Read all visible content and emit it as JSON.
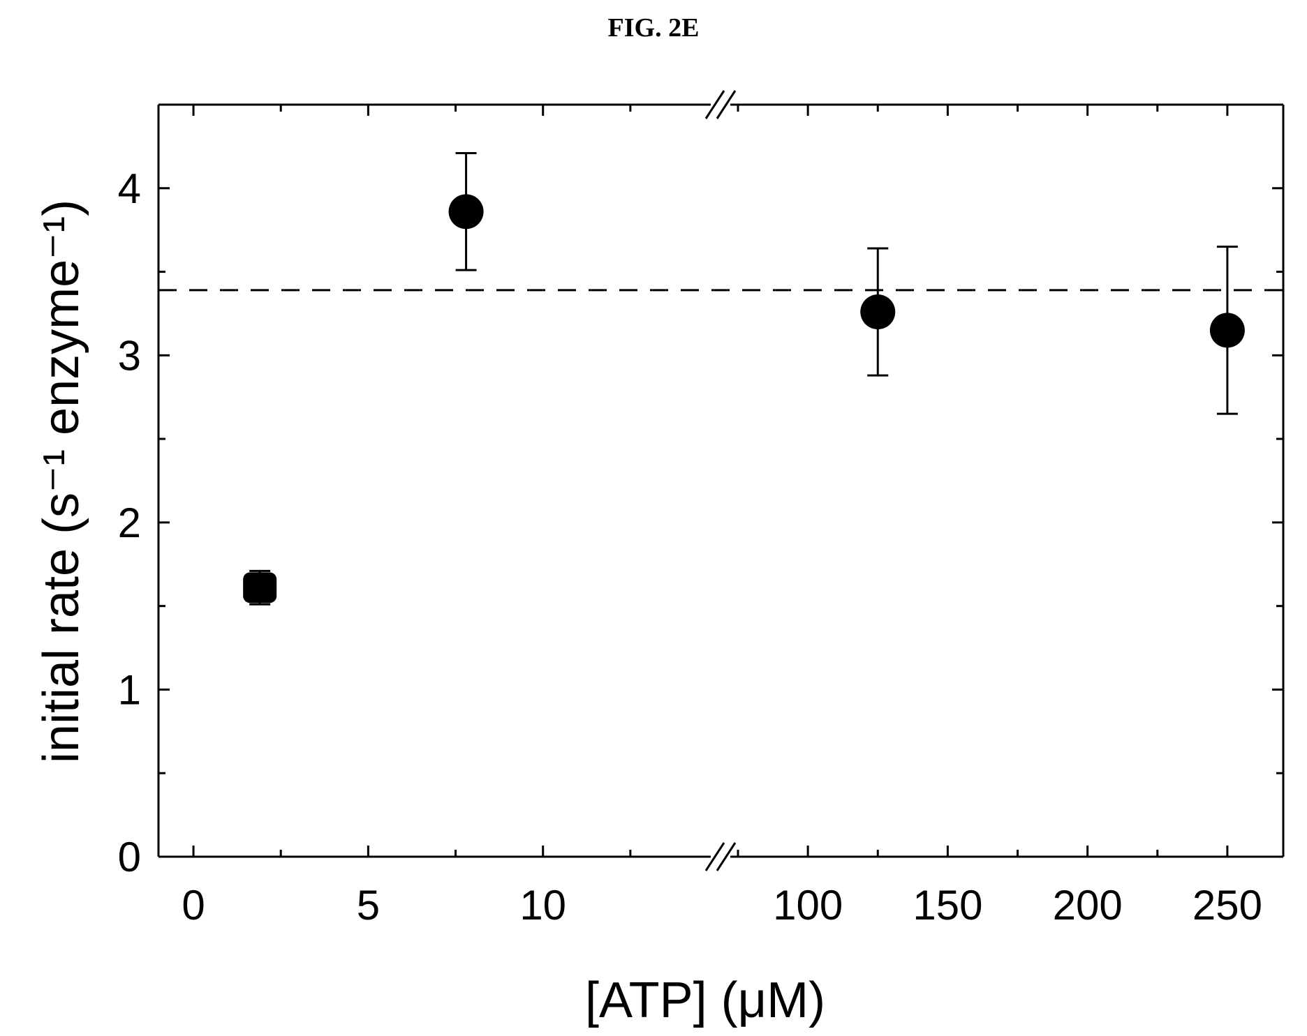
{
  "figure": {
    "title": "FIG. 2E"
  },
  "chart_data": {
    "type": "scatter",
    "xlabel": "[ATP] (μM)",
    "ylabel": "initial rate (s⁻¹ enzyme⁻¹)",
    "x_axis": {
      "broken": true,
      "segments": [
        {
          "xlim": [
            -1,
            14.8
          ],
          "ticks": [
            0,
            5,
            10
          ],
          "tick_labels": [
            "0",
            "5",
            "10"
          ]
        },
        {
          "xlim": [
            72,
            270
          ],
          "ticks": [
            100,
            150,
            200,
            250
          ],
          "tick_labels": [
            "100",
            "150",
            "200",
            "250"
          ]
        }
      ]
    },
    "ylim": [
      0,
      4.5
    ],
    "yticks": [
      0,
      1,
      2,
      3,
      4
    ],
    "ytick_labels": [
      "0",
      "1",
      "2",
      "3",
      "4"
    ],
    "points": [
      {
        "x": 1.9,
        "y": 1.61,
        "err": 0.1,
        "marker": "square"
      },
      {
        "x": 7.8,
        "y": 3.86,
        "err": 0.35,
        "marker": "circle"
      },
      {
        "x": 125,
        "y": 3.26,
        "err": 0.38,
        "marker": "circle"
      },
      {
        "x": 250,
        "y": 3.15,
        "err": 0.5,
        "marker": "circle"
      }
    ],
    "reference_line": {
      "y": 3.39,
      "style": "dashed"
    },
    "grid": false,
    "colors": {
      "marker": "#000000",
      "line": "#000000"
    }
  }
}
